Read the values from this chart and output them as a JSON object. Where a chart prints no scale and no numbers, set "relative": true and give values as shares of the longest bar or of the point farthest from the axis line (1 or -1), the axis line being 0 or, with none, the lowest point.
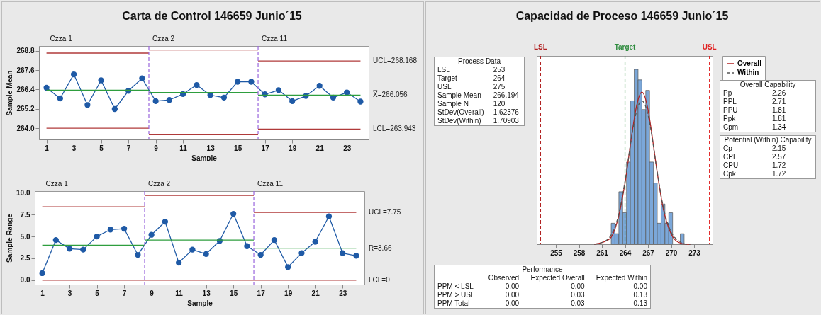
{
  "chart_data": [
    {
      "type": "line",
      "title": "Carta de Control 146659 Junio´15",
      "xlabel": "Sample",
      "ylabel": "Sample Mean",
      "x": [
        1,
        2,
        3,
        4,
        5,
        6,
        7,
        8,
        9,
        10,
        11,
        12,
        13,
        14,
        15,
        16,
        17,
        18,
        19,
        20,
        21,
        22,
        23,
        24
      ],
      "xlim": [
        0.45,
        24.6
      ],
      "xticks": [
        1,
        3,
        5,
        7,
        9,
        11,
        13,
        15,
        17,
        19,
        21,
        23
      ],
      "ylim": [
        263.3,
        269.1
      ],
      "yticks": [
        {
          "value": 264,
          "label": "264.0"
        },
        265.2,
        266.4,
        267.6,
        268.8
      ],
      "annotations": [
        "Czza 1",
        "Czza 2",
        "Czza 11"
      ],
      "ref_lines": [
        {
          "axis": "x",
          "value": 8.5,
          "color": "#9966dd",
          "line_style": "dashed"
        },
        {
          "axis": "x",
          "value": 16.5,
          "color": "#9966dd",
          "line_style": "dashed"
        }
      ],
      "series": [
        {
          "color": "#1f5aa6",
          "marker": "circle",
          "values": [
            266.51,
            265.85,
            267.34,
            265.44,
            266.97,
            265.19,
            266.32,
            267.09,
            265.68,
            265.75,
            266.12,
            266.68,
            266.05,
            265.9,
            266.88,
            266.88,
            266.1,
            266.36,
            265.68,
            266.0,
            266.63,
            265.9,
            266.22,
            265.65
          ]
        },
        {
          "type": "line",
          "color": "#b03a3a",
          "x": [
            1,
            8.5
          ],
          "values": [
            268.66,
            268.66
          ]
        },
        {
          "type": "line",
          "color": "#b03a3a",
          "x": [
            8.5,
            16.5
          ],
          "values": [
            268.85,
            268.85
          ]
        },
        {
          "name": "UCL=268.168",
          "type": "line",
          "color": "#b03a3a",
          "x": [
            16.5,
            24
          ],
          "values": [
            268.168,
            268.168
          ]
        },
        {
          "type": "line",
          "color": "#2e9e3e",
          "x": [
            1,
            8.5
          ],
          "values": [
            266.36,
            266.36
          ]
        },
        {
          "type": "line",
          "color": "#2e9e3e",
          "x": [
            8.5,
            16.5
          ],
          "values": [
            266.21,
            266.21
          ]
        },
        {
          "name": "X̿=266.056",
          "type": "line",
          "color": "#2e9e3e",
          "x": [
            16.5,
            24
          ],
          "values": [
            266.056,
            266.056
          ]
        },
        {
          "type": "line",
          "color": "#b03a3a",
          "x": [
            1,
            8.5
          ],
          "values": [
            264.0,
            264.0
          ]
        },
        {
          "type": "line",
          "color": "#b03a3a",
          "x": [
            8.5,
            16.5
          ],
          "values": [
            263.59,
            263.59
          ]
        },
        {
          "name": "LCL=263.943",
          "type": "line",
          "color": "#b03a3a",
          "x": [
            16.5,
            24
          ],
          "values": [
            263.943,
            263.943
          ]
        }
      ]
    },
    {
      "type": "line",
      "xlabel": "Sample",
      "ylabel": "Sample Range",
      "x": [
        1,
        2,
        3,
        4,
        5,
        6,
        7,
        8,
        9,
        10,
        11,
        12,
        13,
        14,
        15,
        16,
        17,
        18,
        19,
        20,
        21,
        22,
        23,
        24
      ],
      "xlim": [
        0.45,
        24.6
      ],
      "xticks": [
        1,
        3,
        5,
        7,
        9,
        11,
        13,
        15,
        17,
        19,
        21,
        23
      ],
      "ylim": [
        -0.5,
        10.2
      ],
      "yticks": [
        {
          "value": 0,
          "label": "0.0"
        },
        2.5,
        {
          "value": 5,
          "label": "5.0"
        },
        7.5,
        {
          "value": 10,
          "label": "10.0"
        }
      ],
      "annotations": [
        "Czza 1",
        "Czza 2",
        "Czza 11"
      ],
      "ref_lines": [
        {
          "axis": "x",
          "value": 8.5,
          "color": "#9966dd",
          "line_style": "dashed"
        },
        {
          "axis": "x",
          "value": 16.5,
          "color": "#9966dd",
          "line_style": "dashed"
        }
      ],
      "series": [
        {
          "color": "#1f5aa6",
          "marker": "circle",
          "values": [
            0.8,
            4.6,
            3.6,
            3.5,
            5.0,
            5.8,
            5.9,
            2.9,
            5.2,
            6.7,
            2.0,
            3.5,
            3.0,
            4.5,
            7.6,
            3.9,
            2.9,
            4.6,
            1.5,
            3.1,
            4.4,
            7.3,
            3.1,
            2.8
          ]
        },
        {
          "type": "line",
          "color": "#b03a3a",
          "x": [
            1,
            8.5
          ],
          "values": [
            8.4,
            8.4
          ]
        },
        {
          "type": "line",
          "color": "#b03a3a",
          "x": [
            8.5,
            16.5
          ],
          "values": [
            9.7,
            9.7
          ]
        },
        {
          "name": "UCL=7.75",
          "type": "line",
          "color": "#b03a3a",
          "x": [
            16.5,
            24
          ],
          "values": [
            7.75,
            7.75
          ]
        },
        {
          "type": "line",
          "color": "#2e9e3e",
          "x": [
            1,
            8.5
          ],
          "values": [
            4.0,
            4.0
          ]
        },
        {
          "type": "line",
          "color": "#2e9e3e",
          "x": [
            8.5,
            16.5
          ],
          "values": [
            4.6,
            4.6
          ]
        },
        {
          "name": "R̄=3.66",
          "type": "line",
          "color": "#2e9e3e",
          "x": [
            16.5,
            24
          ],
          "values": [
            3.66,
            3.66
          ]
        },
        {
          "name": "LCL=0",
          "type": "line",
          "color": "#b03a3a",
          "x": [
            1,
            24
          ],
          "values": [
            0,
            0
          ]
        }
      ]
    },
    {
      "type": "histogram",
      "title": "Capacidad de Proceso 146659 Junio´15",
      "relative": true,
      "color": "#7ba7d9",
      "bins": [
        262.2,
        262.7,
        263.2,
        263.7,
        264.2,
        264.7,
        265.2,
        265.7,
        266.2,
        266.7,
        267.2,
        267.7,
        268.2,
        268.7,
        269.2,
        269.7,
        270.2,
        270.7,
        271.2,
        271.7
      ],
      "values": [
        0.12,
        0.06,
        0.3,
        0.18,
        0.47,
        0.82,
        1,
        0.94,
        0.77,
        0.88,
        0.47,
        0.35,
        0.12,
        0.23,
        0.12,
        0.18,
        0,
        0,
        0.06
      ],
      "xlim": [
        252.5,
        275.4
      ],
      "xticks": [
        255,
        258,
        261,
        264,
        267,
        270,
        273
      ],
      "legend": "top right",
      "ref_lines": [
        {
          "axis": "x",
          "value": 253,
          "label": "LSL",
          "color": "#b22222",
          "line_style": "dashed"
        },
        {
          "axis": "x",
          "value": 264,
          "label": "Target",
          "color": "#2e8b3e",
          "line_style": "dashed"
        },
        {
          "axis": "x",
          "value": 275,
          "label": "USL",
          "color": "#e02020",
          "line_style": "dashed"
        }
      ],
      "series": [
        {
          "name": "Overall",
          "type": "line",
          "color": "#b22222",
          "line_style": "solid",
          "x": [
            260,
            261,
            262,
            263,
            264,
            265,
            265.5,
            266.2,
            267,
            267.5,
            268,
            269,
            270,
            271,
            272,
            272.5
          ],
          "values": [
            0.0,
            0.01,
            0.03,
            0.13,
            0.35,
            0.66,
            0.79,
            0.87,
            0.77,
            0.63,
            0.47,
            0.2,
            0.06,
            0.01,
            0.0,
            0.0
          ]
        },
        {
          "name": "Within",
          "type": "line",
          "color": "#555555",
          "line_style": "dashed",
          "x": [
            260,
            261,
            262,
            263,
            264,
            265,
            265.5,
            266.2,
            267,
            267.5,
            268,
            269,
            270,
            271,
            272,
            272.5
          ],
          "values": [
            0.0,
            0.01,
            0.04,
            0.14,
            0.36,
            0.65,
            0.76,
            0.82,
            0.74,
            0.62,
            0.47,
            0.21,
            0.07,
            0.02,
            0.0,
            0.0
          ]
        }
      ]
    },
    {
      "type": "other",
      "title": "Process Data",
      "categories": [
        "LSL",
        "Target",
        "USL",
        "Sample Mean",
        "Sample N",
        "StDev(Overall)",
        "StDev(Within)"
      ],
      "values": [
        253,
        264,
        275,
        266.194,
        120,
        1.62376,
        1.70903
      ],
      "data_labels": true
    },
    {
      "type": "other",
      "title": "Overall Capability",
      "categories": [
        "Pp",
        "PPL",
        "PPU",
        "Ppk",
        "Cpm"
      ],
      "values": [
        2.26,
        2.71,
        1.81,
        1.81,
        1.34
      ],
      "data_labels": true
    },
    {
      "type": "other",
      "title": "Potential (Within) Capability",
      "categories": [
        "Cp",
        "CPL",
        "CPU",
        "Cpk"
      ],
      "values": [
        2.15,
        2.57,
        1.72,
        1.72
      ],
      "data_labels": true
    },
    {
      "type": "other",
      "title": "Performance",
      "categories": [
        "PPM < LSL",
        "PPM > USL",
        "PPM Total"
      ],
      "series": [
        {
          "name": "Observed",
          "values": [
            0,
            0,
            0
          ],
          "value_labels": [
            "0.00",
            "0.00",
            "0.00"
          ]
        },
        {
          "name": "Expected Overall",
          "values": [
            0,
            0.03,
            0.03
          ],
          "value_labels": [
            "0.00",
            "0.03",
            "0.03"
          ]
        },
        {
          "name": "Expected Within",
          "values": [
            0,
            0.13,
            0.13
          ],
          "value_labels": [
            "0.00",
            "0.13",
            "0.13"
          ]
        }
      ]
    }
  ]
}
